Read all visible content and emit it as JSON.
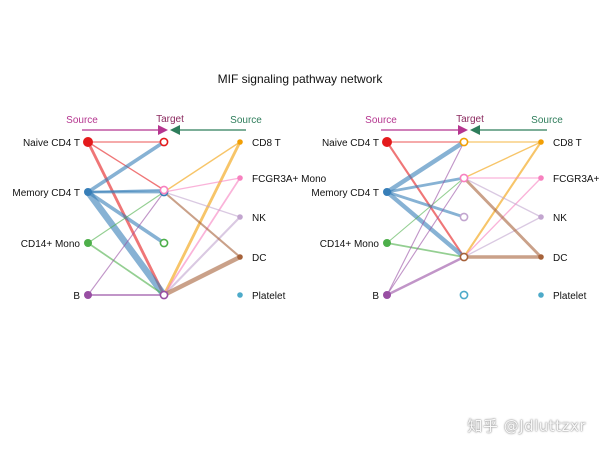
{
  "title": "MIF signaling pathway network",
  "headers": {
    "source": "Source",
    "target": "Target"
  },
  "colors": {
    "Naive CD4 T": "#e41a1c",
    "Memory CD4 T": "#377eb8",
    "CD14+ Mono": "#4daf4a",
    "B": "#984ea3",
    "CD8 T": "#f29f05",
    "FCGR3A+ Mono": "#f781bf",
    "NK": "#c2a5cf",
    "DC": "#a6623a",
    "Platelet": "#4daac9",
    "source_header": "#b5358f",
    "target_header": "#8b2a5f",
    "right_header": "#2e7d5b"
  },
  "watermark": "知乎 @Jdluttzxr",
  "panels": [
    {
      "id": "left",
      "left_sources": [
        "Naive CD4 T",
        "Memory CD4 T",
        "CD14+ Mono",
        "B"
      ],
      "targets": [
        "Naive CD4 T",
        "Memory CD4 T",
        "FCGR3A+ Mono",
        "CD14+ Mono",
        "B"
      ],
      "right_sources": [
        "CD8 T",
        "FCGR3A+ Mono",
        "NK",
        "DC",
        "Platelet"
      ],
      "left_edges": [
        {
          "from": "Naive CD4 T",
          "to": "Naive CD4 T",
          "weight": 1
        },
        {
          "from": "Naive CD4 T",
          "to": "FCGR3A+ Mono",
          "weight": 1
        },
        {
          "from": "Naive CD4 T",
          "to": "B",
          "weight": 3
        },
        {
          "from": "Memory CD4 T",
          "to": "Naive CD4 T",
          "weight": 4
        },
        {
          "from": "Memory CD4 T",
          "to": "Memory CD4 T",
          "weight": 3
        },
        {
          "from": "Memory CD4 T",
          "to": "FCGR3A+ Mono",
          "weight": 2
        },
        {
          "from": "Memory CD4 T",
          "to": "CD14+ Mono",
          "weight": 4
        },
        {
          "from": "Memory CD4 T",
          "to": "B",
          "weight": 8
        },
        {
          "from": "CD14+ Mono",
          "to": "Memory CD4 T",
          "weight": 0.7
        },
        {
          "from": "CD14+ Mono",
          "to": "B",
          "weight": 1.5
        },
        {
          "from": "B",
          "to": "Memory CD4 T",
          "weight": 0.7
        },
        {
          "from": "B",
          "to": "B",
          "weight": 2
        }
      ],
      "right_edges": [
        {
          "from": "CD8 T",
          "to": "Memory CD4 T",
          "weight": 1
        },
        {
          "from": "CD8 T",
          "to": "B",
          "weight": 3
        },
        {
          "from": "FCGR3A+ Mono",
          "to": "Memory CD4 T",
          "weight": 1
        },
        {
          "from": "FCGR3A+ Mono",
          "to": "B",
          "weight": 1.5
        },
        {
          "from": "NK",
          "to": "Memory CD4 T",
          "weight": 1
        },
        {
          "from": "NK",
          "to": "B",
          "weight": 2
        },
        {
          "from": "DC",
          "to": "Memory CD4 T",
          "weight": 2
        },
        {
          "from": "DC",
          "to": "B",
          "weight": 5
        }
      ]
    },
    {
      "id": "right",
      "left_sources": [
        "Naive CD4 T",
        "Memory CD4 T",
        "CD14+ Mono",
        "B"
      ],
      "targets": [
        "CD8 T",
        "FCGR3A+ Mono",
        "NK",
        "DC",
        "Platelet"
      ],
      "right_sources": [
        "CD8 T",
        "FCGR3A+ Mono",
        "NK",
        "DC",
        "Platelet"
      ],
      "left_edges": [
        {
          "from": "Naive CD4 T",
          "to": "CD8 T",
          "weight": 1
        },
        {
          "from": "Naive CD4 T",
          "to": "DC",
          "weight": 2
        },
        {
          "from": "Memory CD4 T",
          "to": "CD8 T",
          "weight": 5
        },
        {
          "from": "Memory CD4 T",
          "to": "FCGR3A+ Mono",
          "weight": 3
        },
        {
          "from": "Memory CD4 T",
          "to": "NK",
          "weight": 3
        },
        {
          "from": "Memory CD4 T",
          "to": "DC",
          "weight": 5
        },
        {
          "from": "CD14+ Mono",
          "to": "FCGR3A+ Mono",
          "weight": 0.7
        },
        {
          "from": "CD14+ Mono",
          "to": "DC",
          "weight": 1.5
        },
        {
          "from": "B",
          "to": "CD8 T",
          "weight": 0.7
        },
        {
          "from": "B",
          "to": "FCGR3A+ Mono",
          "weight": 0.7
        },
        {
          "from": "B",
          "to": "DC",
          "weight": 2.5
        }
      ],
      "right_edges": [
        {
          "from": "CD8 T",
          "to": "CD8 T",
          "weight": 1
        },
        {
          "from": "CD8 T",
          "to": "FCGR3A+ Mono",
          "weight": 1
        },
        {
          "from": "CD8 T",
          "to": "DC",
          "weight": 2
        },
        {
          "from": "FCGR3A+ Mono",
          "to": "FCGR3A+ Mono",
          "weight": 1
        },
        {
          "from": "FCGR3A+ Mono",
          "to": "DC",
          "weight": 1
        },
        {
          "from": "NK",
          "to": "FCGR3A+ Mono",
          "weight": 1
        },
        {
          "from": "NK",
          "to": "DC",
          "weight": 1
        },
        {
          "from": "DC",
          "to": "FCGR3A+ Mono",
          "weight": 3
        },
        {
          "from": "DC",
          "to": "DC",
          "weight": 4
        }
      ]
    }
  ]
}
